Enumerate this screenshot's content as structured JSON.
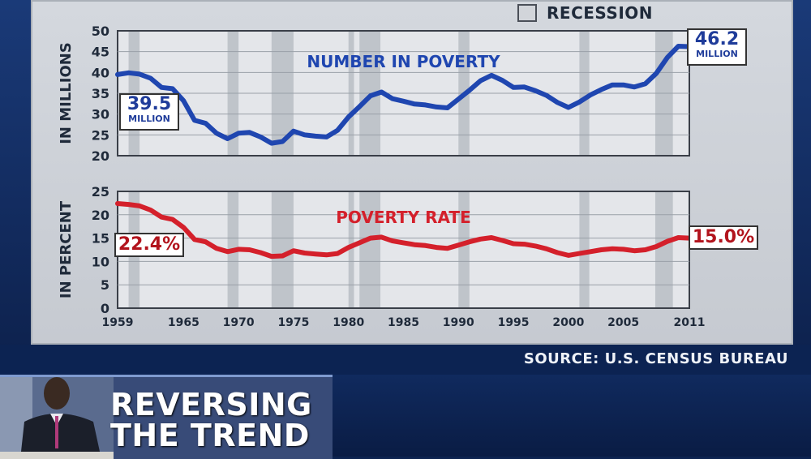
{
  "legend": {
    "label": "RECESSION",
    "colors": {
      "recession": "#b9bdc4"
    }
  },
  "source": "SOURCE: U.S. CENSUS BUREAU",
  "headline": {
    "line1": "REVERSING",
    "line2": "THE TREND"
  },
  "callouts": {
    "top_start": {
      "value": "39.5",
      "unit": "MILLION"
    },
    "top_end": {
      "value": "46.2",
      "unit": "MILLION"
    },
    "bottom_start": {
      "value": "22.4%"
    },
    "bottom_end": {
      "value": "15.0%"
    }
  },
  "chart_data": [
    {
      "type": "line",
      "title": "NUMBER IN POVERTY",
      "ylabel": "IN MILLIONS",
      "xlim": [
        1959,
        2011
      ],
      "ylim": [
        20,
        50
      ],
      "yticks": [
        20,
        25,
        30,
        35,
        40,
        45,
        50
      ],
      "xticks": [],
      "grid": true,
      "color": "#1f46b0",
      "recessions": [
        [
          1960,
          1961
        ],
        [
          1969,
          1970
        ],
        [
          1973,
          1975
        ],
        [
          1980,
          1980.5
        ],
        [
          1981,
          1982.9
        ],
        [
          1990,
          1991
        ],
        [
          2001,
          2001.9
        ],
        [
          2007.9,
          2009.5
        ]
      ],
      "x": [
        1959,
        1960,
        1961,
        1962,
        1963,
        1964,
        1965,
        1966,
        1967,
        1968,
        1969,
        1970,
        1971,
        1972,
        1973,
        1974,
        1975,
        1976,
        1977,
        1978,
        1979,
        1980,
        1981,
        1982,
        1983,
        1984,
        1985,
        1986,
        1987,
        1988,
        1989,
        1990,
        1991,
        1992,
        1993,
        1994,
        1995,
        1996,
        1997,
        1998,
        1999,
        2000,
        2001,
        2002,
        2003,
        2004,
        2005,
        2006,
        2007,
        2008,
        2009,
        2010,
        2011
      ],
      "values": [
        39.5,
        39.9,
        39.6,
        38.6,
        36.4,
        36.1,
        33.2,
        28.5,
        27.8,
        25.4,
        24.1,
        25.4,
        25.6,
        24.5,
        23.0,
        23.4,
        25.9,
        25.0,
        24.7,
        24.5,
        26.1,
        29.3,
        31.8,
        34.4,
        35.3,
        33.7,
        33.1,
        32.4,
        32.2,
        31.7,
        31.5,
        33.6,
        35.7,
        38.0,
        39.3,
        38.1,
        36.4,
        36.5,
        35.6,
        34.5,
        32.8,
        31.6,
        32.9,
        34.6,
        35.9,
        37.0,
        37.0,
        36.5,
        37.3,
        39.8,
        43.6,
        46.3,
        46.2
      ]
    },
    {
      "type": "line",
      "title": "POVERTY RATE",
      "ylabel": "IN PERCENT",
      "xlim": [
        1959,
        2011
      ],
      "ylim": [
        0,
        25
      ],
      "yticks": [
        0,
        5,
        10,
        15,
        20,
        25
      ],
      "xticks": [
        "1959",
        "1965",
        "1970",
        "1975",
        "1980",
        "1985",
        "1990",
        "1995",
        "2000",
        "2005",
        "2011"
      ],
      "xtick_values": [
        1959,
        1965,
        1970,
        1975,
        1980,
        1985,
        1990,
        1995,
        2000,
        2005,
        2011
      ],
      "grid": true,
      "color": "#d4202b",
      "recessions": [
        [
          1960,
          1961
        ],
        [
          1969,
          1970
        ],
        [
          1973,
          1975
        ],
        [
          1980,
          1980.5
        ],
        [
          1981,
          1982.9
        ],
        [
          1990,
          1991
        ],
        [
          2001,
          2001.9
        ],
        [
          2007.9,
          2009.5
        ]
      ],
      "x": [
        1959,
        1960,
        1961,
        1962,
        1963,
        1964,
        1965,
        1966,
        1967,
        1968,
        1969,
        1970,
        1971,
        1972,
        1973,
        1974,
        1975,
        1976,
        1977,
        1978,
        1979,
        1980,
        1981,
        1982,
        1983,
        1984,
        1985,
        1986,
        1987,
        1988,
        1989,
        1990,
        1991,
        1992,
        1993,
        1994,
        1995,
        1996,
        1997,
        1998,
        1999,
        2000,
        2001,
        2002,
        2003,
        2004,
        2005,
        2006,
        2007,
        2008,
        2009,
        2010,
        2011
      ],
      "values": [
        22.4,
        22.2,
        21.9,
        21.0,
        19.5,
        19.0,
        17.3,
        14.7,
        14.2,
        12.8,
        12.1,
        12.6,
        12.5,
        11.9,
        11.1,
        11.2,
        12.3,
        11.8,
        11.6,
        11.4,
        11.7,
        13.0,
        14.0,
        15.0,
        15.2,
        14.4,
        14.0,
        13.6,
        13.4,
        13.0,
        12.8,
        13.5,
        14.2,
        14.8,
        15.1,
        14.5,
        13.8,
        13.7,
        13.3,
        12.7,
        11.9,
        11.3,
        11.7,
        12.1,
        12.5,
        12.7,
        12.6,
        12.3,
        12.5,
        13.2,
        14.3,
        15.1,
        15.0
      ]
    }
  ]
}
